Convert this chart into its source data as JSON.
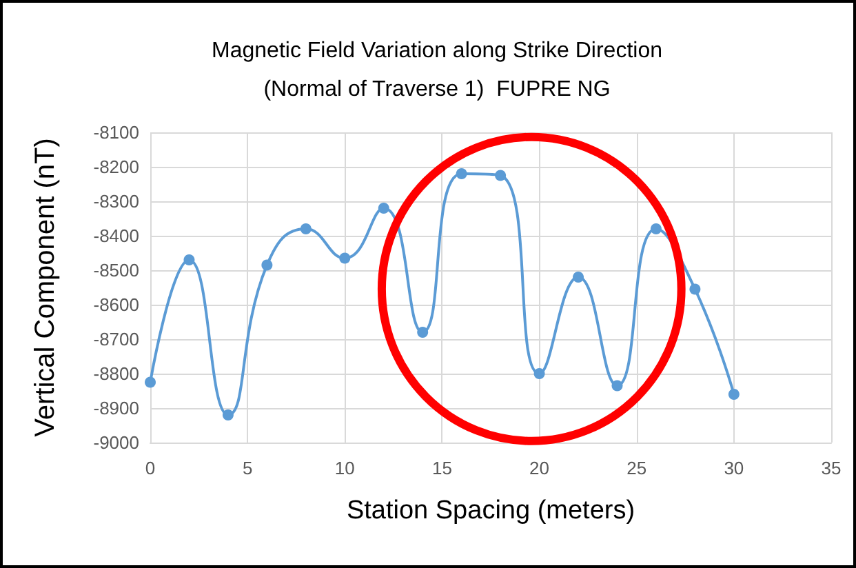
{
  "chart_data": {
    "type": "line",
    "title": "Magnetic Field Variation along Strike Direction\n(Normal of Traverse 1)  FUPRE NG",
    "xlabel": "Station Spacing (meters)",
    "ylabel": "Vertical Component (nT)",
    "x": [
      0,
      2,
      4,
      6,
      8,
      10,
      12,
      14,
      16,
      18,
      20,
      22,
      24,
      26,
      28,
      30
    ],
    "series": [
      {
        "color": "#5b9bd5",
        "values": [
          -8825,
          -8470,
          -8920,
          -8485,
          -8380,
          -8465,
          -8320,
          -8680,
          -8220,
          -8225,
          -8800,
          -8520,
          -8835,
          -8380,
          -8555,
          -8860
        ]
      }
    ],
    "xlim": [
      0,
      35
    ],
    "xticks": [
      0,
      5,
      10,
      15,
      20,
      25,
      30,
      35
    ],
    "ylim": [
      -9000,
      -8100
    ],
    "yticks": [
      -9000,
      -8900,
      -8800,
      -8700,
      -8600,
      -8500,
      -8400,
      -8300,
      -8200,
      -8100
    ],
    "grid": true,
    "marker": "circle",
    "line_style": "solid"
  }
}
